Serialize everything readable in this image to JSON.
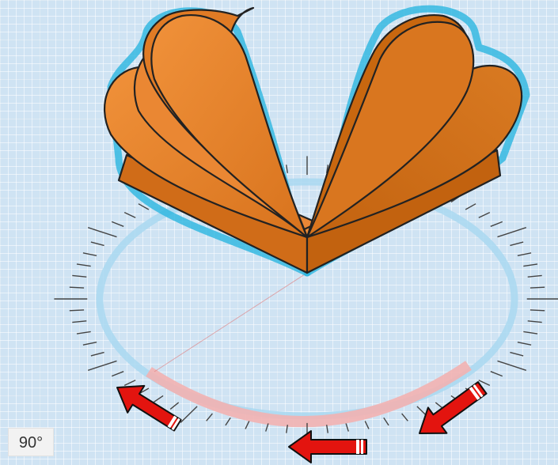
{
  "viewport": {
    "angle_readout": "90°"
  },
  "colors": {
    "workplane": "#cfe3f3",
    "shape_fill": "#ee8a2c",
    "shape_dark": "#c96a16",
    "selection_outline": "#2bb5e0",
    "rotation_ring": "#a9d8f0",
    "rotation_sweep": "#f2b1b1",
    "annotation_arrow": "#e3140f"
  },
  "icons": [
    "rotation-ring",
    "rotation-ticks",
    "red-arrow"
  ]
}
